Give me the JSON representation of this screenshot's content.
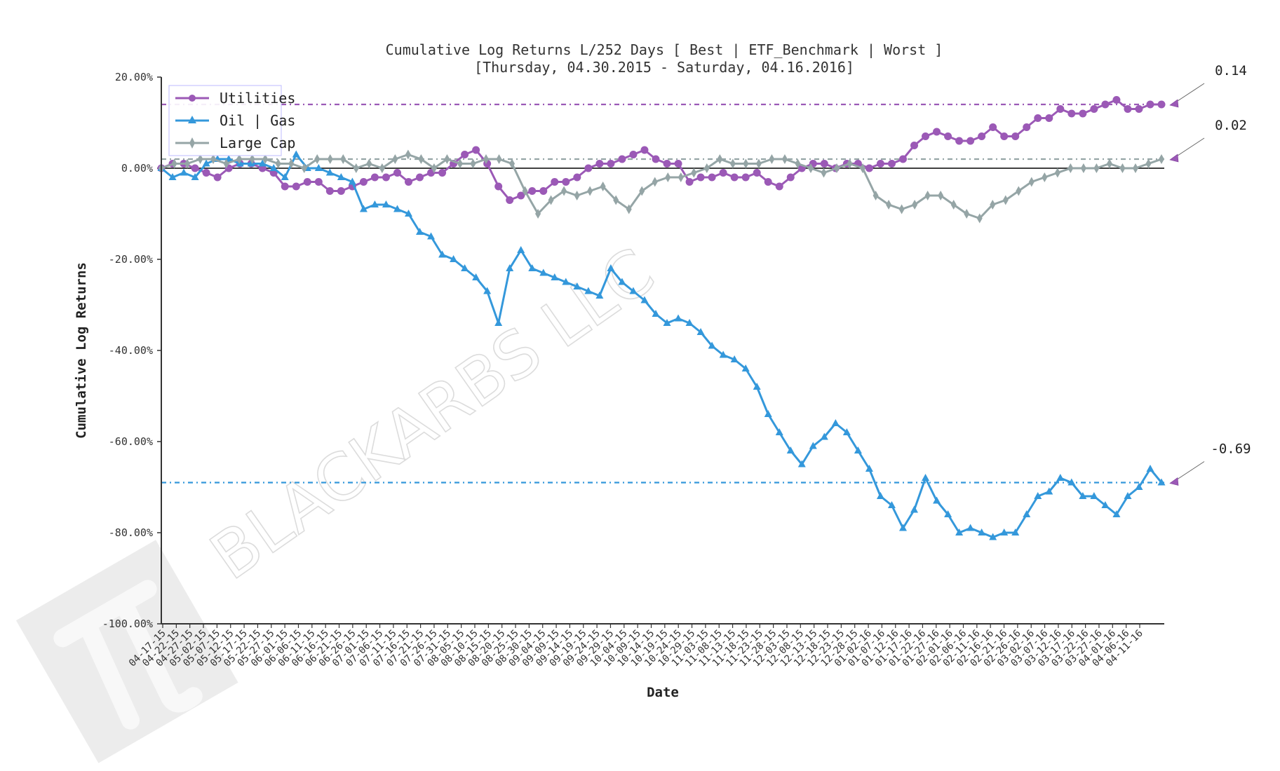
{
  "chart_data": {
    "type": "line",
    "title": "Cumulative Log Returns L/252 Days [ Best | ETF_Benchmark | Worst ]",
    "subtitle": "[Thursday, 04.30.2015 - Saturday, 04.16.2016]",
    "xlabel": "Date",
    "ylabel": "Cumulative Log Returns",
    "ylim": [
      -1.0,
      0.2
    ],
    "yticks": [
      "20.00%",
      "0.00%",
      "-20.00%",
      "-40.00%",
      "-60.00%",
      "-80.00%",
      "-100.00%"
    ],
    "ytick_values": [
      0.2,
      0.0,
      -0.2,
      -0.4,
      -0.6,
      -0.8,
      -1.0
    ],
    "x_tick_labels": [
      "04-17-15",
      "04-22-15",
      "04-27-15",
      "05-02-15",
      "05-07-15",
      "05-12-15",
      "05-17-15",
      "05-22-15",
      "05-27-15",
      "06-01-15",
      "06-06-15",
      "06-11-15",
      "06-16-15",
      "06-21-15",
      "06-26-15",
      "07-01-15",
      "07-06-15",
      "07-11-15",
      "07-16-15",
      "07-21-15",
      "07-26-15",
      "07-31-15",
      "08-05-15",
      "08-10-15",
      "08-15-15",
      "08-20-15",
      "08-25-15",
      "08-30-15",
      "09-04-15",
      "09-09-15",
      "09-14-15",
      "09-19-15",
      "09-24-15",
      "09-29-15",
      "10-04-15",
      "10-09-15",
      "10-14-15",
      "10-19-15",
      "10-24-15",
      "10-29-15",
      "11-03-15",
      "11-08-15",
      "11-13-15",
      "11-18-15",
      "11-23-15",
      "11-28-15",
      "12-03-15",
      "12-08-15",
      "12-13-15",
      "12-18-15",
      "12-23-15",
      "12-28-15",
      "01-02-16",
      "01-07-16",
      "01-12-16",
      "01-17-16",
      "01-22-16",
      "01-27-16",
      "02-01-16",
      "02-06-16",
      "02-11-16",
      "02-16-16",
      "02-21-16",
      "02-26-16",
      "03-02-16",
      "03-07-16",
      "03-12-16",
      "03-17-16",
      "03-22-16",
      "03-27-16",
      "04-01-16",
      "04-06-16",
      "04-11-16"
    ],
    "grid": false,
    "legend_position": "upper left",
    "zero_line": true,
    "series": [
      {
        "name": "Utilities",
        "color": "#9b59b6",
        "marker": "circle",
        "final_value": 0.14,
        "values": [
          0.0,
          0.01,
          0.01,
          0.0,
          -0.01,
          -0.02,
          0.0,
          0.01,
          0.01,
          0.0,
          -0.01,
          -0.04,
          -0.04,
          -0.03,
          -0.03,
          -0.05,
          -0.05,
          -0.04,
          -0.03,
          -0.02,
          -0.02,
          -0.01,
          -0.03,
          -0.02,
          -0.01,
          -0.01,
          0.01,
          0.03,
          0.04,
          0.01,
          -0.04,
          -0.07,
          -0.06,
          -0.05,
          -0.05,
          -0.03,
          -0.03,
          -0.02,
          0.0,
          0.01,
          0.01,
          0.02,
          0.03,
          0.04,
          0.02,
          0.01,
          0.01,
          -0.03,
          -0.02,
          -0.02,
          -0.01,
          -0.02,
          -0.02,
          -0.01,
          -0.03,
          -0.04,
          -0.02,
          0.0,
          0.01,
          0.01,
          0.0,
          0.01,
          0.01,
          0.0,
          0.01,
          0.01,
          0.02,
          0.05,
          0.07,
          0.08,
          0.07,
          0.06,
          0.06,
          0.07,
          0.09,
          0.07,
          0.07,
          0.09,
          0.11,
          0.11,
          0.13,
          0.12,
          0.12,
          0.13,
          0.14,
          0.15,
          0.13,
          0.13,
          0.14,
          0.14
        ]
      },
      {
        "name": "Oil | Gas",
        "color": "#3498db",
        "marker": "triangle",
        "final_value": -0.69,
        "values": [
          0.0,
          -0.02,
          -0.01,
          -0.02,
          0.01,
          0.02,
          0.02,
          0.01,
          0.01,
          0.01,
          0.0,
          -0.02,
          0.03,
          0.0,
          0.0,
          -0.01,
          -0.02,
          -0.03,
          -0.09,
          -0.08,
          -0.08,
          -0.09,
          -0.1,
          -0.14,
          -0.15,
          -0.19,
          -0.2,
          -0.22,
          -0.24,
          -0.27,
          -0.34,
          -0.22,
          -0.18,
          -0.22,
          -0.23,
          -0.24,
          -0.25,
          -0.26,
          -0.27,
          -0.28,
          -0.22,
          -0.25,
          -0.27,
          -0.29,
          -0.32,
          -0.34,
          -0.33,
          -0.34,
          -0.36,
          -0.39,
          -0.41,
          -0.42,
          -0.44,
          -0.48,
          -0.54,
          -0.58,
          -0.62,
          -0.65,
          -0.61,
          -0.59,
          -0.56,
          -0.58,
          -0.62,
          -0.66,
          -0.72,
          -0.74,
          -0.79,
          -0.75,
          -0.68,
          -0.73,
          -0.76,
          -0.8,
          -0.79,
          -0.8,
          -0.81,
          -0.8,
          -0.8,
          -0.76,
          -0.72,
          -0.71,
          -0.68,
          -0.69,
          -0.72,
          -0.72,
          -0.74,
          -0.76,
          -0.72,
          -0.7,
          -0.66,
          -0.69
        ]
      },
      {
        "name": "Large Cap",
        "color": "#95a5a6",
        "marker": "diamond",
        "final_value": 0.02,
        "values": [
          0.0,
          0.01,
          0.01,
          0.02,
          0.02,
          0.01,
          0.02,
          0.02,
          0.02,
          0.01,
          0.01,
          0.0,
          0.02,
          0.02,
          0.02,
          0.0,
          0.01,
          0.0,
          0.02,
          0.03,
          0.02,
          0.0,
          0.02,
          0.01,
          0.01,
          0.02,
          0.02,
          0.01,
          -0.05,
          -0.1,
          -0.07,
          -0.05,
          -0.06,
          -0.05,
          -0.04,
          -0.07,
          -0.09,
          -0.05,
          -0.03,
          -0.02,
          -0.02,
          -0.01,
          0.0,
          0.02,
          0.01,
          0.01,
          0.01,
          0.02,
          0.02,
          0.01,
          0.0,
          -0.01,
          0.0,
          0.01,
          0.0,
          -0.06,
          -0.08,
          -0.09,
          -0.08,
          -0.06,
          -0.06,
          -0.08,
          -0.1,
          -0.11,
          -0.08,
          -0.07,
          -0.05,
          -0.03,
          -0.02,
          -0.01,
          0.0,
          0.0,
          0.0,
          0.01,
          0.0,
          0.0,
          0.01,
          0.02
        ]
      }
    ],
    "reference_lines": [
      {
        "series": "Utilities",
        "value": 0.14,
        "style": "dash-dot",
        "color": "#9b59b6"
      },
      {
        "series": "Large Cap",
        "value": 0.02,
        "style": "dash-dot",
        "color": "#95a5a6"
      },
      {
        "series": "Oil | Gas",
        "value": -0.69,
        "style": "dash-dot",
        "color": "#3498db"
      }
    ],
    "annotations": [
      {
        "text": "0.14",
        "target_value": 0.14
      },
      {
        "text": "0.02",
        "target_value": 0.02
      },
      {
        "text": "-0.69",
        "target_value": -0.69
      }
    ],
    "watermark": "BLACKARBS LLC"
  },
  "legend": {
    "items": [
      {
        "label": "Utilities",
        "color": "#9b59b6"
      },
      {
        "label": "Oil | Gas",
        "color": "#3498db"
      },
      {
        "label": "Large Cap",
        "color": "#95a5a6"
      }
    ]
  }
}
